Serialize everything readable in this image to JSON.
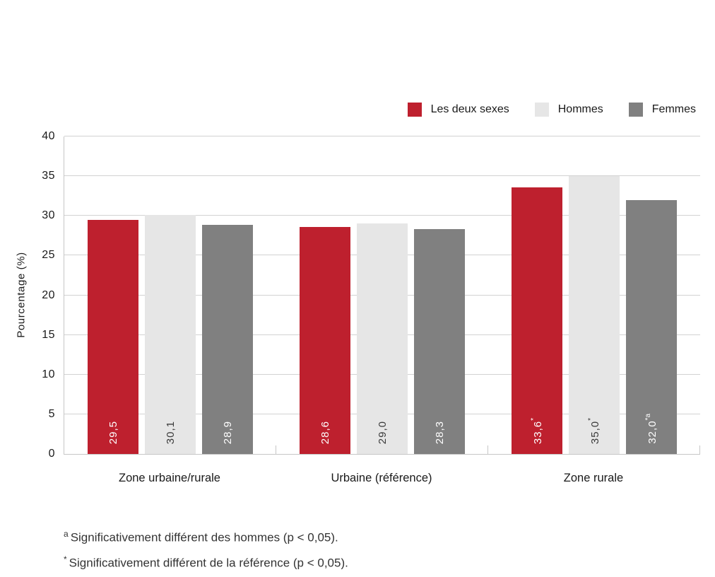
{
  "chart_data": {
    "type": "bar",
    "title": "",
    "ylabel": "Pourcentage (%)",
    "ylim": [
      0,
      40
    ],
    "ytick_step": 5,
    "ytick_labels": [
      "0",
      "5",
      "10",
      "15",
      "20",
      "25",
      "30",
      "35",
      "40"
    ],
    "categories": [
      "Zone urbaine/rurale",
      "Urbaine (référence)",
      "Zone rurale"
    ],
    "series": [
      {
        "name": "Les deux sexes",
        "color": "#be202e",
        "label_color": "#ffffff",
        "values": [
          29.5,
          28.6,
          33.6
        ],
        "value_labels": [
          "29,5",
          "28,6",
          "33,6"
        ],
        "value_markers": [
          "",
          "",
          "*"
        ]
      },
      {
        "name": "Hommes",
        "color": "#e6e6e6",
        "label_color": "#3a3a3a",
        "values": [
          30.1,
          29.0,
          35.0
        ],
        "value_labels": [
          "30,1",
          "29,0",
          "35,0"
        ],
        "value_markers": [
          "",
          "",
          "*"
        ]
      },
      {
        "name": "Femmes",
        "color": "#808080",
        "label_color": "#ffffff",
        "values": [
          28.9,
          28.3,
          32.0
        ],
        "value_labels": [
          "28,9",
          "28,3",
          "32,0"
        ],
        "value_markers": [
          "",
          "",
          "*a"
        ]
      }
    ],
    "grid": "horizontal",
    "legend_position": "top-right"
  },
  "footnotes": [
    {
      "marker": "a",
      "text": "Significativement différent des hommes (p < 0,05)."
    },
    {
      "marker": "*",
      "text": "Significativement différent de la référence (p < 0,05)."
    }
  ]
}
